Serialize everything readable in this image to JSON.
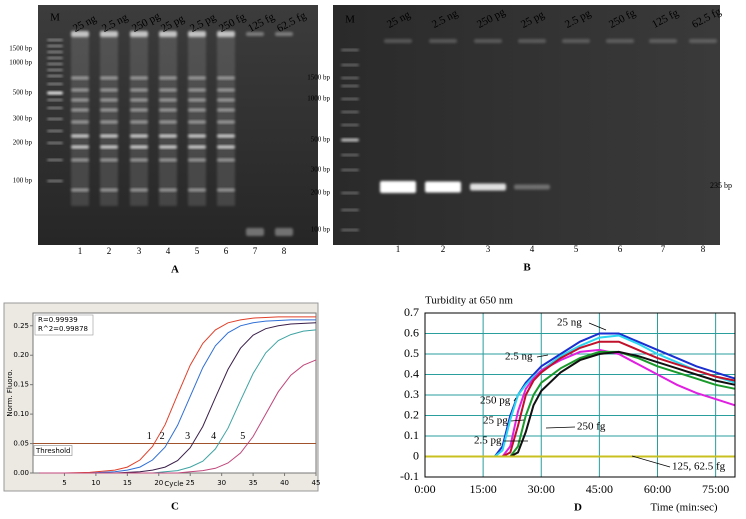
{
  "gels": [
    {
      "panel_label": "A",
      "marker": "M",
      "lanes": [
        "25 ng",
        "2.5 ng",
        "250 pg",
        "25 pg",
        "2.5 pg",
        "250 fg",
        "125 fg",
        "62.5 fg"
      ],
      "lane_numbers": [
        1,
        2,
        3,
        4,
        5,
        6,
        7,
        8
      ],
      "sizes": [
        "1500 bp",
        "1000 bp",
        "500 bp",
        "300 bp",
        "200 bp",
        "100 bp"
      ]
    },
    {
      "panel_label": "B",
      "marker": "M",
      "lanes": [
        "25 ng",
        "2.5 ng",
        "250 pg",
        "25 pg",
        "2.5 pg",
        "250 fg",
        "125 fg",
        "62.5 fg"
      ],
      "lane_numbers": [
        1,
        2,
        3,
        4,
        5,
        6,
        7,
        8
      ],
      "sizes": [
        "1500 bp",
        "1000 bp",
        "500 bp",
        "300 bp",
        "200 bp",
        "100 bp"
      ],
      "product": "235 bp"
    }
  ],
  "chart_data": [
    {
      "type": "line",
      "panel_label": "C",
      "x_label": "Cycle",
      "y_label": "Norm. Fluoro.",
      "annotations": [
        "R=0.99939",
        "R^2=0.99878"
      ],
      "threshold": 0.05,
      "threshold_label": "Threshold",
      "x": [
        1,
        5,
        9,
        13,
        15,
        17,
        19,
        21,
        23,
        25,
        27,
        29,
        31,
        33,
        35,
        37,
        39,
        41,
        43,
        45
      ],
      "series": [
        {
          "name": "1",
          "color": "#e0402a",
          "values": [
            0,
            0,
            0.001,
            0.005,
            0.01,
            0.022,
            0.045,
            0.082,
            0.133,
            0.183,
            0.22,
            0.243,
            0.255,
            0.26,
            0.263,
            0.264,
            0.265,
            0.265,
            0.265,
            0.265
          ]
        },
        {
          "name": "2",
          "color": "#2f6fd6",
          "values": [
            0,
            0,
            0,
            0.002,
            0.005,
            0.01,
            0.022,
            0.044,
            0.081,
            0.13,
            0.179,
            0.216,
            0.238,
            0.25,
            0.255,
            0.258,
            0.259,
            0.26,
            0.26,
            0.26
          ]
        },
        {
          "name": "3",
          "color": "#3a1f4a",
          "values": [
            0,
            0,
            0,
            0,
            0.001,
            0.002,
            0.005,
            0.01,
            0.021,
            0.043,
            0.079,
            0.128,
            0.176,
            0.212,
            0.234,
            0.245,
            0.25,
            0.253,
            0.254,
            0.255
          ]
        },
        {
          "name": "4",
          "color": "#3fa3a3",
          "values": [
            0,
            0,
            0,
            0,
            0,
            0,
            0,
            0.002,
            0.004,
            0.01,
            0.02,
            0.041,
            0.076,
            0.123,
            0.169,
            0.204,
            0.225,
            0.235,
            0.241,
            0.243
          ]
        },
        {
          "name": "5",
          "color": "#c0467a",
          "values": [
            0,
            0,
            0,
            0,
            0,
            0,
            0,
            0,
            0,
            0.002,
            0.004,
            0.008,
            0.017,
            0.034,
            0.062,
            0.1,
            0.138,
            0.166,
            0.183,
            0.192
          ]
        }
      ],
      "xlim": [
        0,
        45
      ],
      "xticks": [
        5,
        10,
        15,
        20,
        25,
        30,
        35,
        40,
        45
      ],
      "ylim": [
        0,
        0.27
      ],
      "yticks": [
        {
          "value": 0,
          "label": "0.00"
        },
        {
          "value": 0.05,
          "label": "0.05"
        },
        {
          "value": 0.1,
          "label": "0.10"
        },
        {
          "value": 0.15,
          "label": "0.15"
        },
        {
          "value": 0.2,
          "label": "0.20"
        },
        {
          "value": 0.25,
          "label": "0.25"
        }
      ],
      "grid": false
    },
    {
      "type": "line",
      "panel_label": "D",
      "title": "Turbidity at 650 nm",
      "x_label": "Time (min:sec)",
      "x": [
        0,
        10,
        18,
        20,
        22,
        24,
        26,
        28,
        30,
        35,
        40,
        45,
        50,
        55,
        60,
        65,
        70,
        75,
        80
      ],
      "series": [
        {
          "name": "25 ng",
          "color": "#1a2fd0",
          "values": [
            0,
            0,
            0,
            0.05,
            0.2,
            0.3,
            0.36,
            0.4,
            0.44,
            0.5,
            0.56,
            0.6,
            0.6,
            0.56,
            0.52,
            0.48,
            0.44,
            0.41,
            0.38
          ]
        },
        {
          "name": "2.5 ng",
          "color": "#2ad6f0",
          "values": [
            0,
            0,
            0,
            0.03,
            0.18,
            0.3,
            0.35,
            0.39,
            0.42,
            0.49,
            0.54,
            0.58,
            0.59,
            0.55,
            0.5,
            0.46,
            0.42,
            0.39,
            0.36
          ]
        },
        {
          "name": "250 pg",
          "color": "#e020e0",
          "values": [
            0,
            0,
            0,
            0,
            0.05,
            0.22,
            0.33,
            0.38,
            0.42,
            0.47,
            0.51,
            0.52,
            0.5,
            0.45,
            0.4,
            0.35,
            0.31,
            0.28,
            0.25
          ]
        },
        {
          "name": "25 pg",
          "color": "#c0102a",
          "values": [
            0,
            0,
            0,
            0,
            0.02,
            0.15,
            0.3,
            0.37,
            0.41,
            0.48,
            0.53,
            0.56,
            0.56,
            0.52,
            0.48,
            0.45,
            0.42,
            0.39,
            0.37
          ]
        },
        {
          "name": "2.5 pg",
          "color": "#1a9a2a",
          "values": [
            0,
            0,
            0,
            0,
            0,
            0.05,
            0.2,
            0.3,
            0.36,
            0.43,
            0.48,
            0.51,
            0.51,
            0.48,
            0.44,
            0.41,
            0.38,
            0.35,
            0.33
          ]
        },
        {
          "name": "250 fg",
          "color": "#111111",
          "values": [
            0,
            0,
            0,
            0,
            0,
            0.02,
            0.12,
            0.25,
            0.32,
            0.41,
            0.47,
            0.5,
            0.51,
            0.49,
            0.46,
            0.43,
            0.4,
            0.37,
            0.35
          ]
        },
        {
          "name": "125, 62.5 fg",
          "color": "#c8c020",
          "values": [
            0,
            0,
            0,
            0,
            0,
            0,
            0,
            0,
            0,
            0,
            0,
            0,
            0,
            0,
            0,
            0,
            0,
            0,
            0
          ]
        }
      ],
      "xlim": [
        0,
        80
      ],
      "xticks": [
        {
          "value": 0,
          "label": "0:00"
        },
        {
          "value": 15,
          "label": "15:00"
        },
        {
          "value": 30,
          "label": "30:00"
        },
        {
          "value": 45,
          "label": "45:00"
        },
        {
          "value": 60,
          "label": "60:00"
        },
        {
          "value": 75,
          "label": "75:00"
        }
      ],
      "ylim": [
        -0.1,
        0.7
      ],
      "yticks": [
        -0.1,
        0,
        0.1,
        0.2,
        0.3,
        0.4,
        0.5,
        0.6,
        0.7
      ],
      "grid": true,
      "grid_color": "#2a9d9d"
    }
  ]
}
